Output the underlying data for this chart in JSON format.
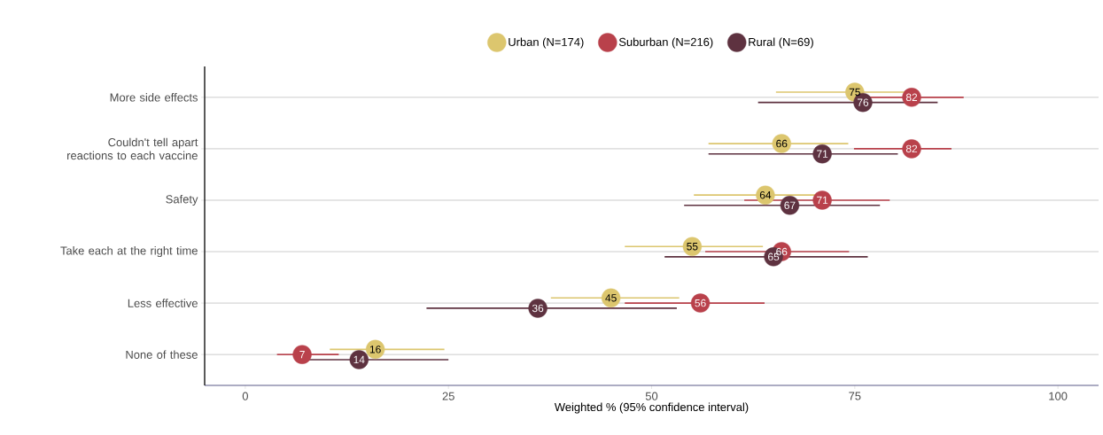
{
  "chart_data": {
    "type": "scatter",
    "orientation": "horizontal",
    "xlabel": "Weighted % (95% confidence interval)",
    "categories": [
      "More side effects",
      "Couldn't tell apart reactions to each vaccine",
      "Safety",
      "Take each at the right time",
      "Less effective",
      "None of these"
    ],
    "series": [
      {
        "name": "Urban (N=174)",
        "color": "#dcc66e",
        "values": [
          75,
          66,
          64,
          55,
          45,
          16
        ],
        "errors": [
          [
            65.3,
            82.5
          ],
          [
            57.0,
            74.2
          ],
          [
            55.2,
            71.2
          ],
          [
            46.7,
            63.7
          ],
          [
            37.6,
            53.4
          ],
          [
            10.4,
            24.5
          ]
        ]
      },
      {
        "name": "Suburban (N=216)",
        "color": "#b9414b",
        "values": [
          82,
          82,
          71,
          66,
          56,
          7
        ],
        "errors": [
          [
            74.9,
            88.4
          ],
          [
            74.9,
            86.9
          ],
          [
            61.4,
            79.3
          ],
          [
            56.6,
            74.3
          ],
          [
            46.7,
            63.9
          ],
          [
            3.9,
            11.5
          ]
        ]
      },
      {
        "name": "Rural (N=69)",
        "color": "#5e3240",
        "values": [
          76,
          71,
          67,
          65,
          36,
          14
        ],
        "errors": [
          [
            63.1,
            85.2
          ],
          [
            57.0,
            80.3
          ],
          [
            54.0,
            78.1
          ],
          [
            51.6,
            76.6
          ],
          [
            22.3,
            53.1
          ],
          [
            7.6,
            25.0
          ]
        ]
      }
    ],
    "xlim": [
      -5,
      105
    ],
    "xticks": [
      0,
      25,
      50,
      75,
      100
    ],
    "grid": "y",
    "legend": "top",
    "marker": "circle",
    "data_labels": true
  }
}
